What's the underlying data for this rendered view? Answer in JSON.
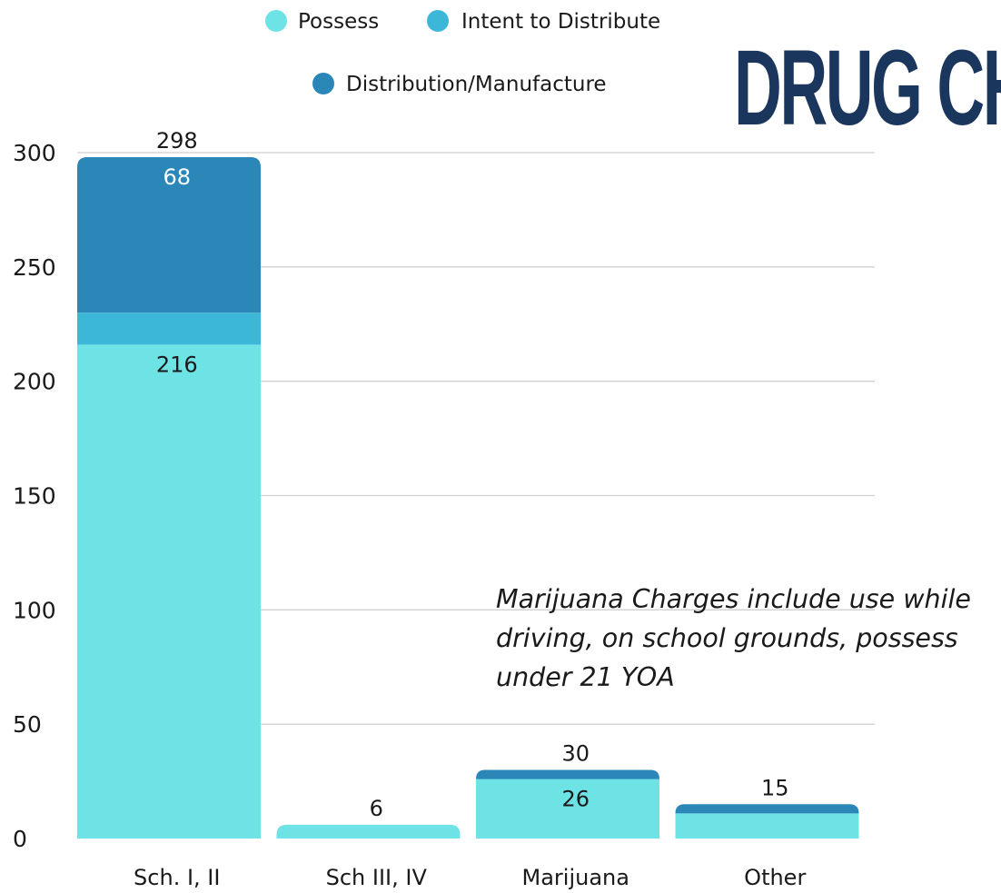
{
  "brand_text": "DRUG CH",
  "note": "Marijuana Charges include use while driving, on school grounds, possess under 21 YOA",
  "colors": {
    "possess": "#6ee3e6",
    "intent": "#3cb7d8",
    "distribution": "#2b87b8",
    "grid": "#d0d0d0",
    "text": "#1a1a1a",
    "brand": "#1b365d"
  },
  "chart_data": {
    "type": "bar",
    "stacked": true,
    "categories": [
      "Sch. I, II",
      "Sch III, IV",
      "Marijuana",
      "Other"
    ],
    "series": [
      {
        "name": "Possess",
        "values": [
          216,
          6,
          26,
          11
        ]
      },
      {
        "name": "Intent to Distribute",
        "values": [
          14,
          0,
          0,
          0
        ]
      },
      {
        "name": "Distribution/Manufacture",
        "values": [
          68,
          0,
          4,
          4
        ]
      }
    ],
    "totals": [
      298,
      6,
      30,
      15
    ],
    "segment_labels": [
      {
        "category": 0,
        "series": 0,
        "text": "216"
      },
      {
        "category": 0,
        "series": 2,
        "text": "68"
      },
      {
        "category": 2,
        "series": 0,
        "text": "26"
      }
    ],
    "yticks": [
      0,
      50,
      100,
      150,
      200,
      250,
      300
    ],
    "ylim": [
      0,
      300
    ],
    "grid": true,
    "legend_position": "top"
  }
}
